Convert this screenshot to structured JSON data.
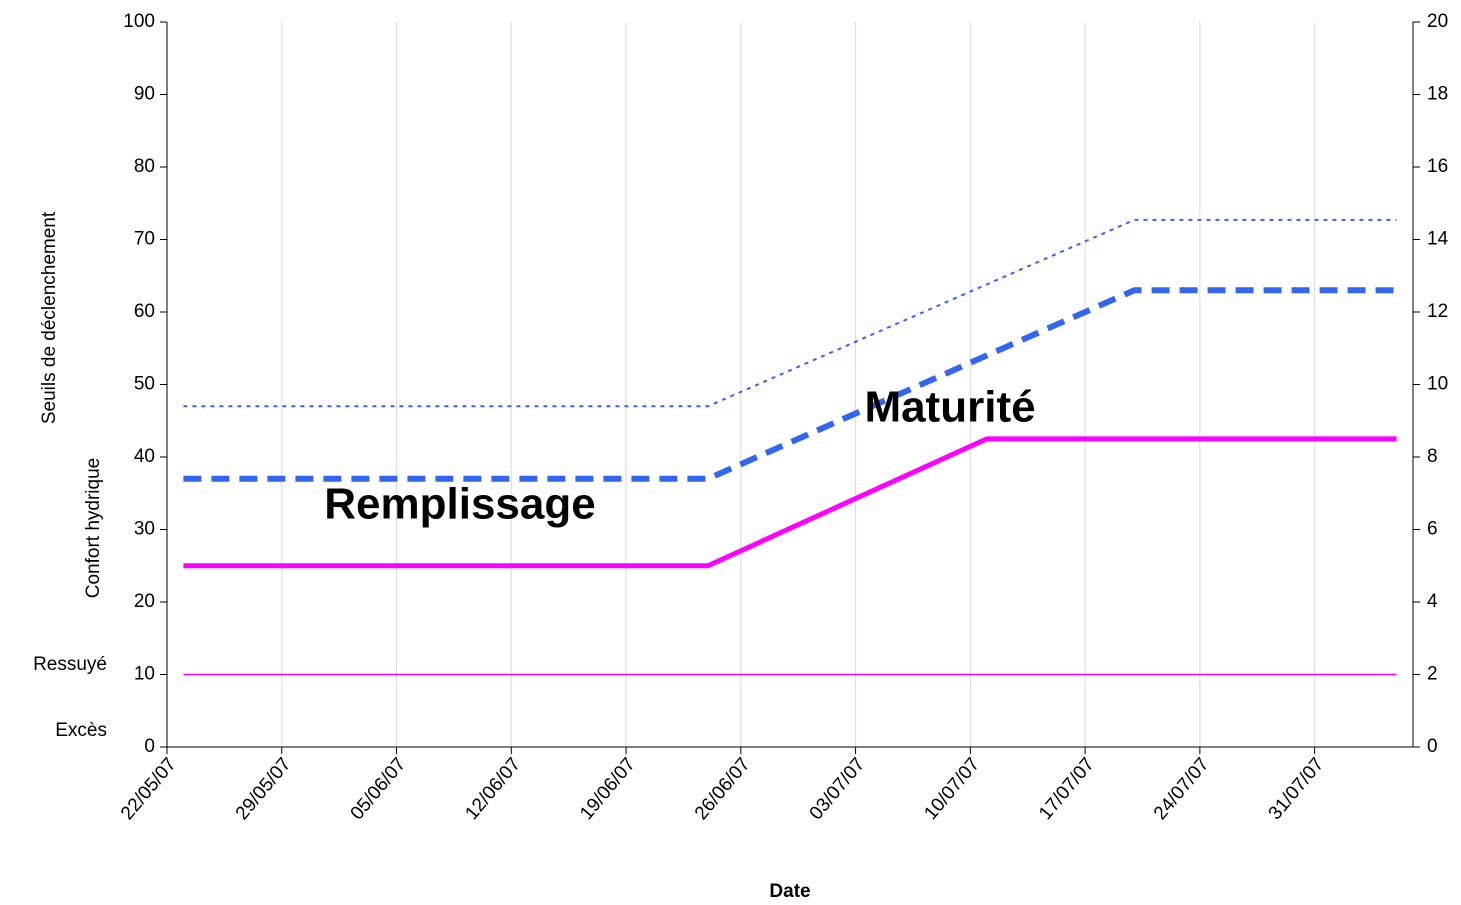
{
  "chart_data": {
    "type": "line",
    "xlabel": "Date",
    "ylabel": [
      "Confort hydrique",
      "Seuils de déclenchement"
    ],
    "annotations": [
      "Remplissage",
      "Maturité",
      "Ressuyé",
      "Excès"
    ],
    "xlim": [
      "2007-05-22",
      "2007-08-06"
    ],
    "xticks": [
      {
        "value": "2007-05-22",
        "label": "22/05/07"
      },
      {
        "value": "2007-05-29",
        "label": "29/05/07"
      },
      {
        "value": "2007-06-05",
        "label": "05/06/07"
      },
      {
        "value": "2007-06-12",
        "label": "12/06/07"
      },
      {
        "value": "2007-06-19",
        "label": "19/06/07"
      },
      {
        "value": "2007-06-26",
        "label": "26/06/07"
      },
      {
        "value": "2007-07-03",
        "label": "03/07/07"
      },
      {
        "value": "2007-07-10",
        "label": "10/07/07"
      },
      {
        "value": "2007-07-17",
        "label": "17/07/07"
      },
      {
        "value": "2007-07-24",
        "label": "24/07/07"
      },
      {
        "value": "2007-07-31",
        "label": "31/07/07"
      }
    ],
    "ylim": [
      0,
      100
    ],
    "yticks": [
      0,
      10,
      20,
      30,
      40,
      50,
      60,
      70,
      80,
      90,
      100
    ],
    "y2lim": [
      0,
      20
    ],
    "y2ticks": [
      0,
      2,
      4,
      6,
      8,
      10,
      12,
      14,
      16,
      18,
      20
    ],
    "grid": "x",
    "series": [
      {
        "color": "#ff00ff",
        "style": "solid",
        "x": [
          "2007-05-23",
          "2007-06-24",
          "2007-07-11",
          "2007-08-05"
        ],
        "values": [
          25,
          25,
          42.5,
          42.5
        ]
      },
      {
        "color": "#3366ee",
        "style": "dashed",
        "x": [
          "2007-05-23",
          "2007-06-24",
          "2007-07-20",
          "2007-08-05"
        ],
        "values": [
          37,
          37,
          63,
          63
        ]
      },
      {
        "color": "#3366ee",
        "style": "dotted",
        "x": [
          "2007-05-23",
          "2007-06-24",
          "2007-07-20",
          "2007-08-05"
        ],
        "values": [
          47,
          47,
          72.7,
          72.7
        ]
      },
      {
        "color": "#ff00ff",
        "style": "solid",
        "x": [
          "2007-05-23",
          "2007-08-05"
        ],
        "values": [
          10,
          10
        ]
      }
    ]
  }
}
